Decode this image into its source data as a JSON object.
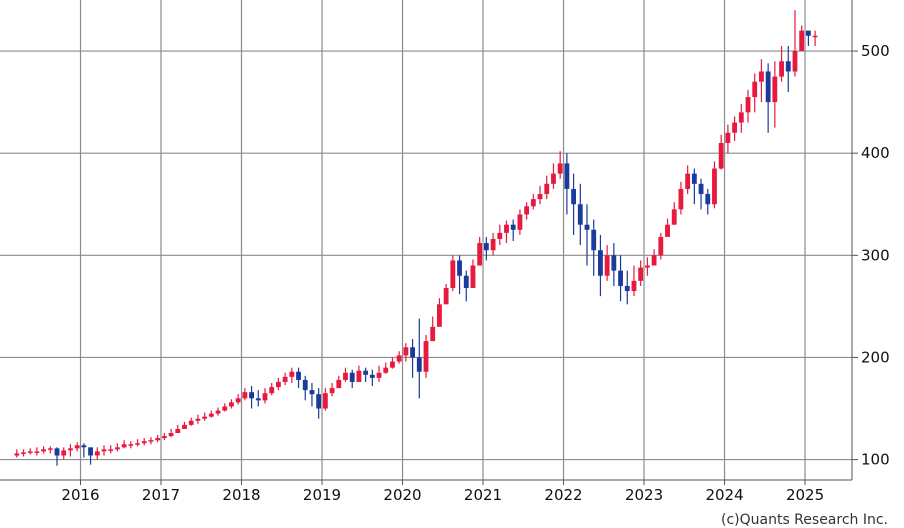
{
  "chart_data": {
    "type": "candlestick",
    "title": "",
    "xlabel": "",
    "ylabel": "",
    "credit": "(c)Quants Research Inc.",
    "x_ticks": [
      "2016",
      "2017",
      "2018",
      "2019",
      "2020",
      "2021",
      "2022",
      "2023",
      "2024",
      "2025"
    ],
    "y_ticks": [
      "100",
      "200",
      "300",
      "400",
      "500"
    ],
    "ylim": [
      80,
      550
    ],
    "xlim": [
      "2015-01",
      "2025-08"
    ],
    "grid": true,
    "y_axis_position": "right",
    "colors": {
      "up": "#e8193f",
      "down": "#1a3a9c",
      "grid": "#8c8c8c",
      "axis": "#555555"
    },
    "months": [
      "2015-03",
      "2015-04",
      "2015-05",
      "2015-06",
      "2015-07",
      "2015-08",
      "2015-09",
      "2015-10",
      "2015-11",
      "2015-12",
      "2016-01",
      "2016-02",
      "2016-03",
      "2016-04",
      "2016-05",
      "2016-06",
      "2016-07",
      "2016-08",
      "2016-09",
      "2016-10",
      "2016-11",
      "2016-12",
      "2017-01",
      "2017-02",
      "2017-03",
      "2017-04",
      "2017-05",
      "2017-06",
      "2017-07",
      "2017-08",
      "2017-09",
      "2017-10",
      "2017-11",
      "2017-12",
      "2018-01",
      "2018-02",
      "2018-03",
      "2018-04",
      "2018-05",
      "2018-06",
      "2018-07",
      "2018-08",
      "2018-09",
      "2018-10",
      "2018-11",
      "2018-12",
      "2019-01",
      "2019-02",
      "2019-03",
      "2019-04",
      "2019-05",
      "2019-06",
      "2019-07",
      "2019-08",
      "2019-09",
      "2019-10",
      "2019-11",
      "2019-12",
      "2020-01",
      "2020-02",
      "2020-03",
      "2020-04",
      "2020-05",
      "2020-06",
      "2020-07",
      "2020-08",
      "2020-09",
      "2020-10",
      "2020-11",
      "2020-12",
      "2021-01",
      "2021-02",
      "2021-03",
      "2021-04",
      "2021-05",
      "2021-06",
      "2021-07",
      "2021-08",
      "2021-09",
      "2021-10",
      "2021-11",
      "2021-12",
      "2022-01",
      "2022-02",
      "2022-03",
      "2022-04",
      "2022-05",
      "2022-06",
      "2022-07",
      "2022-08",
      "2022-09",
      "2022-10",
      "2022-11",
      "2022-12",
      "2023-01",
      "2023-02",
      "2023-03",
      "2023-04",
      "2023-05",
      "2023-06",
      "2023-07",
      "2023-08",
      "2023-09",
      "2023-10",
      "2023-11",
      "2023-12",
      "2024-01",
      "2024-02",
      "2024-03",
      "2024-04",
      "2024-05",
      "2024-06",
      "2024-07",
      "2024-08",
      "2024-09",
      "2024-10",
      "2024-11",
      "2024-12",
      "2025-01",
      "2025-02"
    ],
    "close": [
      106,
      107,
      108,
      108,
      110,
      111,
      104,
      109,
      111,
      114,
      112,
      104,
      108,
      110,
      110,
      112,
      115,
      115,
      116,
      118,
      119,
      121,
      123,
      126,
      130,
      134,
      138,
      140,
      142,
      145,
      148,
      152,
      156,
      160,
      166,
      160,
      158,
      165,
      171,
      176,
      181,
      186,
      178,
      168,
      164,
      150,
      165,
      170,
      178,
      185,
      176,
      187,
      183,
      180,
      185,
      190,
      196,
      202,
      210,
      200,
      186,
      216,
      230,
      252,
      268,
      295,
      280,
      268,
      290,
      312,
      305,
      316,
      322,
      330,
      325,
      340,
      348,
      355,
      360,
      370,
      380,
      390,
      365,
      350,
      330,
      325,
      305,
      280,
      300,
      285,
      270,
      265,
      275,
      288,
      290,
      300,
      318,
      330,
      345,
      365,
      380,
      370,
      360,
      350,
      385,
      410,
      420,
      430,
      440,
      455,
      470,
      480,
      450,
      475,
      490,
      480,
      500,
      520,
      515,
      515
    ],
    "high": [
      110,
      110,
      111,
      112,
      113,
      113,
      112,
      112,
      115,
      117,
      116,
      110,
      112,
      114,
      114,
      116,
      119,
      118,
      120,
      121,
      122,
      124,
      126,
      130,
      134,
      137,
      141,
      144,
      146,
      148,
      151,
      155,
      159,
      164,
      170,
      172,
      168,
      170,
      175,
      180,
      185,
      190,
      190,
      182,
      175,
      170,
      170,
      175,
      182,
      190,
      188,
      192,
      190,
      188,
      192,
      195,
      200,
      206,
      214,
      218,
      238,
      222,
      240,
      258,
      272,
      300,
      300,
      285,
      296,
      318,
      318,
      322,
      330,
      334,
      335,
      345,
      352,
      360,
      368,
      378,
      390,
      402,
      400,
      380,
      370,
      350,
      335,
      320,
      310,
      312,
      300,
      285,
      290,
      295,
      298,
      306,
      322,
      336,
      352,
      372,
      388,
      385,
      375,
      365,
      392,
      418,
      428,
      436,
      448,
      462,
      478,
      492,
      488,
      490,
      505,
      505,
      540,
      525,
      520,
      520
    ],
    "low": [
      102,
      103,
      105,
      104,
      106,
      106,
      94,
      100,
      103,
      108,
      102,
      95,
      100,
      104,
      106,
      108,
      111,
      111,
      113,
      114,
      115,
      117,
      119,
      122,
      126,
      130,
      133,
      135,
      138,
      141,
      143,
      147,
      150,
      154,
      158,
      150,
      152,
      155,
      163,
      168,
      173,
      175,
      170,
      158,
      152,
      140,
      148,
      162,
      170,
      176,
      170,
      178,
      176,
      172,
      176,
      184,
      189,
      194,
      196,
      180,
      160,
      180,
      220,
      240,
      258,
      265,
      262,
      255,
      270,
      296,
      295,
      300,
      310,
      312,
      314,
      320,
      335,
      345,
      350,
      355,
      365,
      375,
      340,
      320,
      310,
      290,
      280,
      260,
      275,
      270,
      255,
      252,
      260,
      270,
      280,
      290,
      296,
      320,
      330,
      340,
      360,
      350,
      345,
      340,
      346,
      384,
      400,
      412,
      420,
      430,
      440,
      450,
      420,
      425,
      470,
      460,
      475,
      505,
      505,
      505
    ]
  }
}
